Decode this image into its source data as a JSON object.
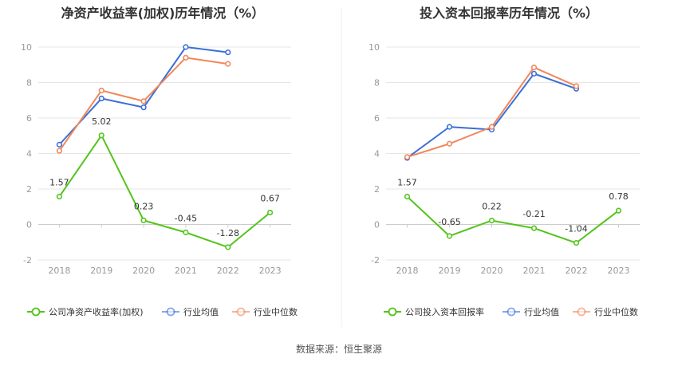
{
  "source": "数据来源：恒生聚源",
  "colors": {
    "company": "#52c41a",
    "avg": "#3b6fd9",
    "median": "#f0875a",
    "grid": "#e6e6e6",
    "axis": "#cccccc"
  },
  "chart_data": [
    {
      "type": "line",
      "title": "净资产收益率(加权)历年情况（%）",
      "categories": [
        "2018",
        "2019",
        "2020",
        "2021",
        "2022",
        "2023"
      ],
      "ylim": [
        -2,
        10
      ],
      "yticks": [
        "-2",
        "0",
        "2",
        "4",
        "6",
        "8",
        "10"
      ],
      "grid": true,
      "legend_position": "bottom",
      "series": [
        {
          "name": "公司净资产收益率(加权)",
          "key": "company",
          "values": [
            1.57,
            5.02,
            0.23,
            -0.45,
            -1.28,
            0.67
          ],
          "labels": [
            "1.57",
            "5.02",
            "0.23",
            "-0.45",
            "-1.28",
            "0.67"
          ]
        },
        {
          "name": "行业均值",
          "key": "avg",
          "values": [
            4.5,
            7.1,
            6.6,
            10.0,
            9.7,
            null
          ]
        },
        {
          "name": "行业中位数",
          "key": "median",
          "values": [
            4.15,
            7.55,
            6.95,
            9.4,
            9.05,
            null
          ]
        }
      ]
    },
    {
      "type": "line",
      "title": "投入资本回报率历年情况（%）",
      "categories": [
        "2018",
        "2019",
        "2020",
        "2021",
        "2022",
        "2023"
      ],
      "ylim": [
        -2,
        10
      ],
      "yticks": [
        "-2",
        "0",
        "2",
        "4",
        "6",
        "8",
        "10"
      ],
      "grid": true,
      "legend_position": "bottom",
      "series": [
        {
          "name": "公司投入资本回报率",
          "key": "company",
          "values": [
            1.57,
            -0.65,
            0.22,
            -0.21,
            -1.04,
            0.78
          ],
          "labels": [
            "1.57",
            "-0.65",
            "0.22",
            "-0.21",
            "-1.04",
            "0.78"
          ]
        },
        {
          "name": "行业均值",
          "key": "avg",
          "values": [
            3.75,
            5.5,
            5.35,
            8.5,
            7.65,
            null
          ]
        },
        {
          "name": "行业中位数",
          "key": "median",
          "values": [
            3.8,
            4.55,
            5.5,
            8.85,
            7.8,
            null
          ]
        }
      ]
    }
  ]
}
